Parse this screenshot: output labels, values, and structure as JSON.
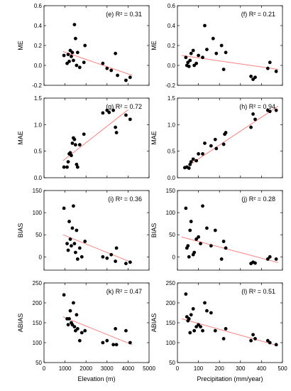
{
  "figure": {
    "colors": {
      "points": "#000000",
      "fit_line": "#ff8080",
      "axes": "#000000"
    }
  },
  "chart_data": [
    {
      "id": "e",
      "type": "scatter",
      "panel_label": "(e)",
      "r2_text": "R² = 0.31",
      "ylabel": "ME",
      "xlabel": "",
      "xlim": [
        0,
        5000
      ],
      "ylim": [
        -0.2,
        0.6
      ],
      "yticks": [
        "-0.2",
        "0.0",
        "0.2",
        "0.4",
        "0.6"
      ],
      "xticks": [
        "0",
        "1000",
        "2000",
        "3000",
        "4000",
        "5000"
      ],
      "show_xtick_labels": false,
      "points": [
        [
          950,
          0.1
        ],
        [
          1100,
          0.02
        ],
        [
          1150,
          0.11
        ],
        [
          1200,
          0.04
        ],
        [
          1250,
          0.15
        ],
        [
          1300,
          0.09
        ],
        [
          1350,
          0.13
        ],
        [
          1400,
          0.05
        ],
        [
          1450,
          0.41
        ],
        [
          1500,
          0.27
        ],
        [
          1550,
          0.0
        ],
        [
          1600,
          0.13
        ],
        [
          1700,
          -0.02
        ],
        [
          1900,
          0.03
        ],
        [
          1950,
          0.2
        ],
        [
          2800,
          0.02
        ],
        [
          3000,
          -0.03
        ],
        [
          3200,
          -0.05
        ],
        [
          3400,
          0.12
        ],
        [
          3500,
          -0.1
        ],
        [
          3900,
          -0.15
        ],
        [
          4100,
          -0.12
        ]
      ],
      "fit": [
        [
          900,
          0.14
        ],
        [
          4200,
          -0.1
        ]
      ]
    },
    {
      "id": "f",
      "type": "scatter",
      "panel_label": "(f)",
      "r2_text": "R² = 0.21",
      "ylabel": "ME",
      "xlabel": "",
      "xlim": [
        0,
        500
      ],
      "ylim": [
        -0.2,
        0.6
      ],
      "yticks": [
        "-0.2",
        "0.0",
        "0.2",
        "0.4",
        "0.6"
      ],
      "xticks": [
        "0",
        "100",
        "200",
        "300",
        "400",
        "500"
      ],
      "show_xtick_labels": false,
      "points": [
        [
          40,
          0.08
        ],
        [
          45,
          0.0
        ],
        [
          50,
          0.03
        ],
        [
          55,
          -0.01
        ],
        [
          60,
          0.05
        ],
        [
          65,
          0.12
        ],
        [
          75,
          0.15
        ],
        [
          80,
          0.0
        ],
        [
          90,
          0.02
        ],
        [
          100,
          0.1
        ],
        [
          120,
          0.08
        ],
        [
          130,
          0.4
        ],
        [
          140,
          0.16
        ],
        [
          170,
          0.27
        ],
        [
          185,
          0.12
        ],
        [
          210,
          0.2
        ],
        [
          230,
          0.13
        ],
        [
          220,
          -0.04
        ],
        [
          350,
          -0.11
        ],
        [
          360,
          -0.14
        ],
        [
          370,
          -0.12
        ],
        [
          430,
          -0.03
        ],
        [
          440,
          0.03
        ],
        [
          470,
          -0.06
        ]
      ],
      "fit": [
        [
          20,
          0.1
        ],
        [
          480,
          -0.04
        ]
      ]
    },
    {
      "id": "g",
      "type": "scatter",
      "panel_label": "(g)",
      "r2_text": "R² = 0.72",
      "ylabel": "MAE",
      "xlabel": "",
      "xlim": [
        0,
        5000
      ],
      "ylim": [
        0,
        1.5
      ],
      "yticks": [
        "0.0",
        "0.5",
        "1.0",
        "1.5"
      ],
      "xticks": [
        "0",
        "1000",
        "2000",
        "3000",
        "4000",
        "5000"
      ],
      "show_xtick_labels": false,
      "points": [
        [
          950,
          0.2
        ],
        [
          1100,
          0.2
        ],
        [
          1150,
          0.3
        ],
        [
          1200,
          0.45
        ],
        [
          1250,
          0.47
        ],
        [
          1300,
          0.42
        ],
        [
          1350,
          0.65
        ],
        [
          1400,
          0.75
        ],
        [
          1450,
          0.72
        ],
        [
          1500,
          0.62
        ],
        [
          1550,
          0.25
        ],
        [
          1600,
          0.2
        ],
        [
          1700,
          0.62
        ],
        [
          1900,
          0.82
        ],
        [
          2800,
          1.22
        ],
        [
          3000,
          1.27
        ],
        [
          3100,
          1.23
        ],
        [
          3300,
          1.27
        ],
        [
          3400,
          0.95
        ],
        [
          3450,
          0.85
        ],
        [
          3900,
          1.18
        ],
        [
          4100,
          1.1
        ]
      ],
      "fit": [
        [
          900,
          0.32
        ],
        [
          4000,
          1.28
        ]
      ]
    },
    {
      "id": "h",
      "type": "scatter",
      "panel_label": "(h)",
      "r2_text": "R² = 0.94",
      "ylabel": "MAE",
      "xlabel": "",
      "xlim": [
        0,
        500
      ],
      "ylim": [
        0,
        1.5
      ],
      "yticks": [
        "0.0",
        "0.5",
        "1.0",
        "1.5"
      ],
      "xticks": [
        "0",
        "100",
        "200",
        "300",
        "400",
        "500"
      ],
      "show_xtick_labels": false,
      "points": [
        [
          35,
          0.19
        ],
        [
          45,
          0.2
        ],
        [
          55,
          0.18
        ],
        [
          60,
          0.25
        ],
        [
          65,
          0.3
        ],
        [
          75,
          0.35
        ],
        [
          90,
          0.32
        ],
        [
          100,
          0.45
        ],
        [
          120,
          0.45
        ],
        [
          130,
          0.65
        ],
        [
          160,
          0.6
        ],
        [
          180,
          0.72
        ],
        [
          185,
          0.55
        ],
        [
          220,
          0.63
        ],
        [
          225,
          0.82
        ],
        [
          230,
          0.85
        ],
        [
          350,
          0.95
        ],
        [
          360,
          1.2
        ],
        [
          370,
          1.1
        ],
        [
          430,
          1.27
        ],
        [
          440,
          1.25
        ],
        [
          470,
          1.27
        ]
      ],
      "fit": [
        [
          30,
          0.17
        ],
        [
          480,
          1.35
        ]
      ]
    },
    {
      "id": "i",
      "type": "scatter",
      "panel_label": "(i)",
      "r2_text": "R² = 0.36",
      "ylabel": "BIAS",
      "xlabel": "",
      "xlim": [
        0,
        5000
      ],
      "ylim": [
        -30,
        150
      ],
      "yticks": [
        "0",
        "50",
        "100",
        "150"
      ],
      "xticks": [
        "0",
        "1000",
        "2000",
        "3000",
        "4000",
        "5000"
      ],
      "show_xtick_labels": false,
      "points": [
        [
          950,
          110
        ],
        [
          1100,
          30
        ],
        [
          1150,
          15
        ],
        [
          1200,
          80
        ],
        [
          1250,
          40
        ],
        [
          1300,
          25
        ],
        [
          1350,
          65
        ],
        [
          1400,
          115
        ],
        [
          1450,
          30
        ],
        [
          1500,
          10
        ],
        [
          1550,
          60
        ],
        [
          1600,
          -5
        ],
        [
          1700,
          20
        ],
        [
          1800,
          0
        ],
        [
          1950,
          35
        ],
        [
          2800,
          0
        ],
        [
          3000,
          -3
        ],
        [
          3200,
          5
        ],
        [
          3400,
          -10
        ],
        [
          3450,
          20
        ],
        [
          3900,
          -15
        ],
        [
          4100,
          -12
        ]
      ],
      "fit": [
        [
          900,
          50
        ],
        [
          4200,
          -13
        ]
      ]
    },
    {
      "id": "j",
      "type": "scatter",
      "panel_label": "(j)",
      "r2_text": "R² = 0.28",
      "ylabel": "BIAS",
      "xlabel": "",
      "xlim": [
        0,
        500
      ],
      "ylim": [
        -30,
        150
      ],
      "yticks": [
        "0",
        "50",
        "100",
        "150"
      ],
      "xticks": [
        "0",
        "100",
        "200",
        "300",
        "400",
        "500"
      ],
      "show_xtick_labels": false,
      "points": [
        [
          40,
          110
        ],
        [
          45,
          20
        ],
        [
          50,
          25
        ],
        [
          55,
          0
        ],
        [
          60,
          60
        ],
        [
          65,
          80
        ],
        [
          75,
          5
        ],
        [
          80,
          10
        ],
        [
          90,
          40
        ],
        [
          100,
          45
        ],
        [
          110,
          30
        ],
        [
          120,
          115
        ],
        [
          140,
          65
        ],
        [
          160,
          25
        ],
        [
          180,
          60
        ],
        [
          210,
          -5
        ],
        [
          220,
          35
        ],
        [
          230,
          20
        ],
        [
          350,
          -15
        ],
        [
          360,
          -12
        ],
        [
          370,
          -14
        ],
        [
          430,
          -5
        ],
        [
          440,
          0
        ],
        [
          470,
          -5
        ]
      ],
      "fit": [
        [
          20,
          45
        ],
        [
          480,
          -13
        ]
      ]
    },
    {
      "id": "k",
      "type": "scatter",
      "panel_label": "(k)",
      "r2_text": "R² = 0.47",
      "ylabel": "ABIAS",
      "xlabel": "Elevation (m)",
      "xlim": [
        0,
        5000
      ],
      "ylim": [
        50,
        250
      ],
      "yticks": [
        "50",
        "100",
        "150",
        "200",
        "250"
      ],
      "xticks": [
        "0",
        "1000",
        "2000",
        "3000",
        "4000",
        "5000"
      ],
      "show_xtick_labels": true,
      "points": [
        [
          950,
          220
        ],
        [
          1100,
          160
        ],
        [
          1150,
          145
        ],
        [
          1200,
          160
        ],
        [
          1250,
          180
        ],
        [
          1300,
          150
        ],
        [
          1350,
          145
        ],
        [
          1400,
          200
        ],
        [
          1450,
          140
        ],
        [
          1500,
          130
        ],
        [
          1550,
          170
        ],
        [
          1600,
          135
        ],
        [
          1700,
          105
        ],
        [
          1800,
          125
        ],
        [
          1950,
          130
        ],
        [
          2800,
          100
        ],
        [
          3000,
          105
        ],
        [
          3300,
          95
        ],
        [
          3400,
          135
        ],
        [
          3450,
          95
        ],
        [
          3900,
          130
        ],
        [
          4100,
          100
        ]
      ],
      "fit": [
        [
          900,
          165
        ],
        [
          4200,
          95
        ]
      ]
    },
    {
      "id": "l",
      "type": "scatter",
      "panel_label": "(l)",
      "r2_text": "R² = 0.51",
      "ylabel": "ABIAS",
      "xlabel": "Precipitation (mm/year)",
      "xlim": [
        0,
        500
      ],
      "ylim": [
        50,
        250
      ],
      "yticks": [
        "50",
        "100",
        "150",
        "200",
        "250"
      ],
      "xticks": [
        "0",
        "100",
        "200",
        "300",
        "400",
        "500"
      ],
      "show_xtick_labels": true,
      "points": [
        [
          40,
          222
        ],
        [
          45,
          165
        ],
        [
          50,
          155
        ],
        [
          55,
          160
        ],
        [
          60,
          125
        ],
        [
          65,
          170
        ],
        [
          75,
          185
        ],
        [
          80,
          130
        ],
        [
          90,
          140
        ],
        [
          100,
          145
        ],
        [
          110,
          140
        ],
        [
          120,
          130
        ],
        [
          130,
          200
        ],
        [
          140,
          180
        ],
        [
          160,
          175
        ],
        [
          180,
          130
        ],
        [
          220,
          110
        ],
        [
          230,
          135
        ],
        [
          350,
          105
        ],
        [
          360,
          120
        ],
        [
          370,
          110
        ],
        [
          430,
          105
        ],
        [
          440,
          100
        ],
        [
          470,
          95
        ]
      ],
      "fit": [
        [
          20,
          160
        ],
        [
          480,
          92
        ]
      ]
    }
  ]
}
